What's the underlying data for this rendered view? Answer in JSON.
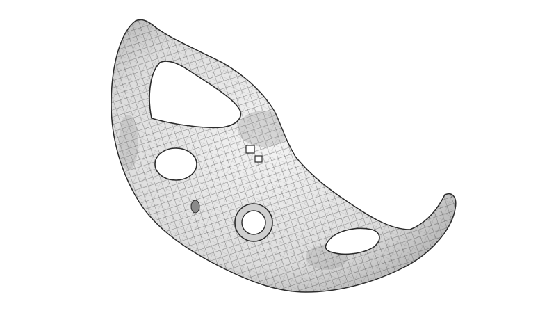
{
  "scene": {
    "subject": "quad-mesh-surface",
    "colors": {
      "background": "#ffffff",
      "surface_light": "#f2f2f2",
      "surface_mid": "#d9d9d9",
      "surface_shadow": "#9a9a9a",
      "mesh_lines": "#3a3a3a",
      "outline": "#2a2a2a"
    },
    "hole_count": 5
  }
}
